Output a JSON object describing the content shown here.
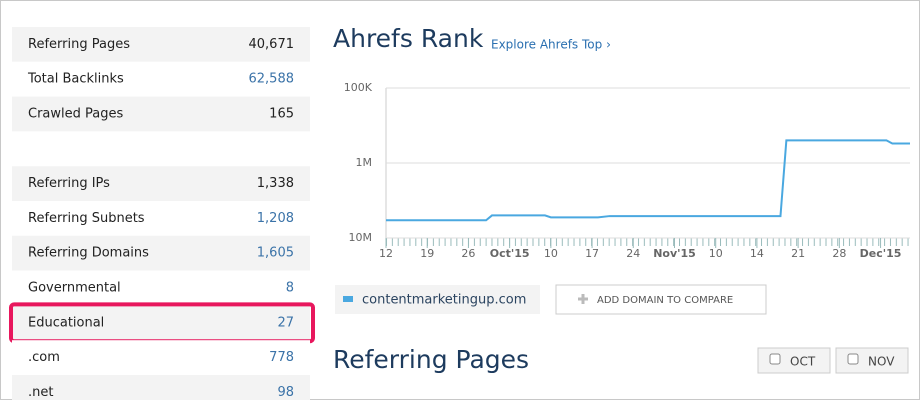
{
  "sidebar": {
    "groups": [
      [
        {
          "label": "Referring Pages",
          "value": "40,671"
        },
        {
          "label": "Total Backlinks",
          "value": "62,588"
        },
        {
          "label": "Crawled Pages",
          "value": "165"
        }
      ],
      [
        {
          "label": "Referring IPs",
          "value": "1,338"
        },
        {
          "label": "Referring Subnets",
          "value": "1,208"
        },
        {
          "label": "Referring Domains",
          "value": "1,605"
        },
        {
          "label": "Governmental",
          "value": "8"
        },
        {
          "label": "Educational",
          "value": "27"
        },
        {
          "label": ".com",
          "value": "778"
        },
        {
          "label": ".net",
          "value": "98"
        }
      ]
    ]
  },
  "rank_header": {
    "title": "Ahrefs Rank",
    "link": "Explore Ahrefs Top ›"
  },
  "chart_data": {
    "type": "line",
    "log_scale": true,
    "grid": true,
    "x": [
      0,
      17,
      18,
      27,
      28,
      36,
      38,
      67,
      68,
      85,
      86,
      89
    ],
    "series": [
      {
        "name": "contentmarketingup.com",
        "color": "#4aa8e0",
        "values": [
          5800000,
          5800000,
          5000000,
          5000000,
          5300000,
          5300000,
          5100000,
          5100000,
          500000,
          500000,
          550000,
          550000
        ]
      }
    ],
    "xlim": [
      0,
      89
    ],
    "xticks": [
      {
        "value": 0,
        "label": "12"
      },
      {
        "value": 7,
        "label": "19"
      },
      {
        "value": 14,
        "label": "26"
      },
      {
        "value": 21,
        "label": "Oct'15"
      },
      {
        "value": 28,
        "label": "10"
      },
      {
        "value": 35,
        "label": "17"
      },
      {
        "value": 42,
        "label": "24"
      },
      {
        "value": 49,
        "label": "Nov'15"
      },
      {
        "value": 56,
        "label": "10"
      },
      {
        "value": 63,
        "label": "14"
      },
      {
        "value": 70,
        "label": "21"
      },
      {
        "value": 77,
        "label": "28"
      },
      {
        "value": 84,
        "label": "Dec'15"
      }
    ],
    "ylim": [
      10000000,
      100000
    ],
    "yticks": [
      {
        "value": 100000,
        "label": "100K"
      },
      {
        "value": 1000000,
        "label": "1M"
      },
      {
        "value": 10000000,
        "label": "10M"
      }
    ]
  },
  "compare_button": "ADD DOMAIN TO COMPARE",
  "referring_pages": {
    "title": "Referring Pages",
    "filters": [
      "OCT",
      "NOV"
    ]
  }
}
